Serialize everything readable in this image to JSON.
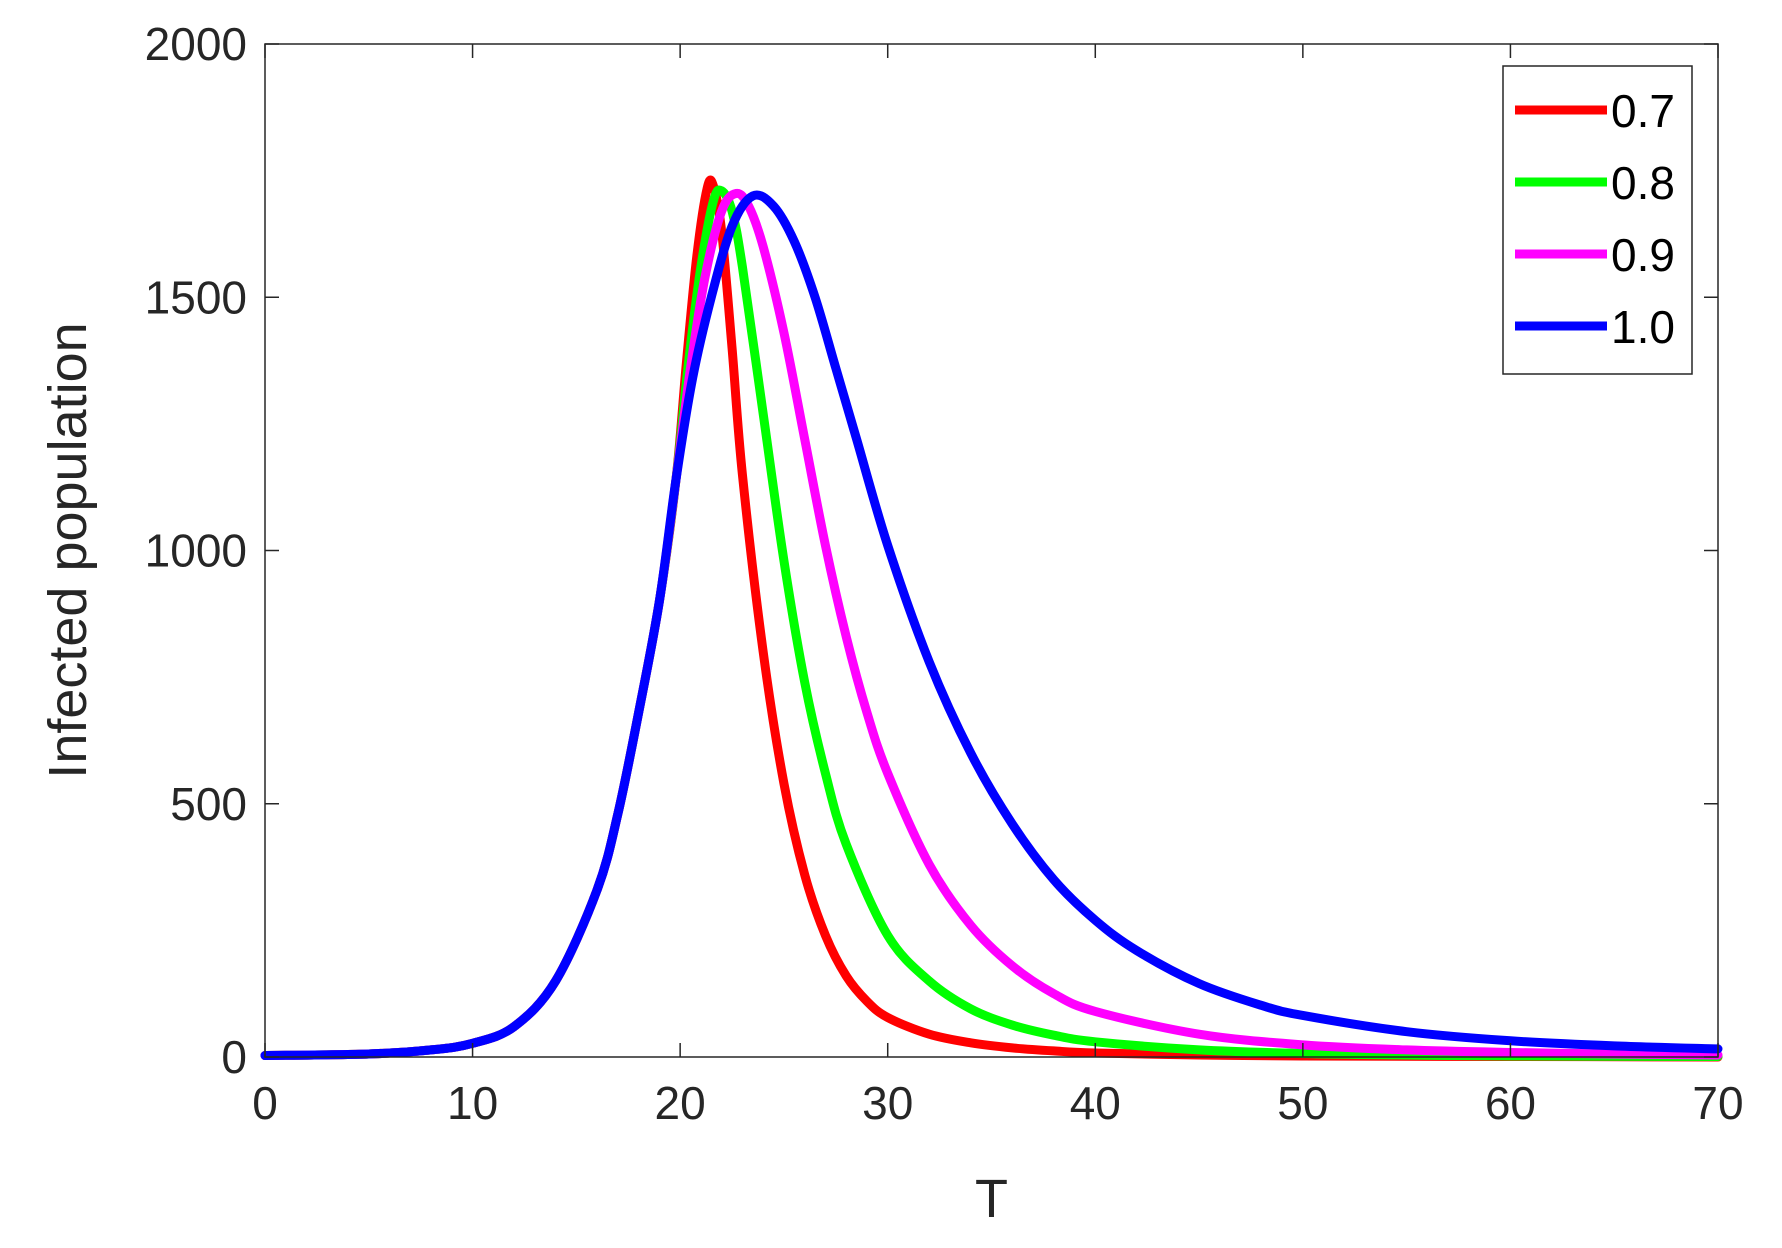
{
  "chart_data": {
    "type": "line",
    "title": "",
    "xlabel": "T",
    "ylabel": "Infected population",
    "xlim": [
      0,
      70
    ],
    "ylim": [
      0,
      2000
    ],
    "xticks": [
      0,
      10,
      20,
      30,
      40,
      50,
      60,
      70
    ],
    "yticks": [
      0,
      500,
      1000,
      1500,
      2000
    ],
    "xtick_labels": [
      "0",
      "10",
      "20",
      "30",
      "40",
      "50",
      "60",
      "70"
    ],
    "ytick_labels": [
      "0",
      "500",
      "1000",
      "1500",
      "2000"
    ],
    "grid": false,
    "legend_position": "top-right",
    "series": [
      {
        "name": "0.7",
        "color": "#ff0000",
        "points": [
          [
            0,
            3
          ],
          [
            5,
            6
          ],
          [
            8,
            14
          ],
          [
            10,
            27
          ],
          [
            12,
            60
          ],
          [
            14,
            150
          ],
          [
            16,
            330
          ],
          [
            17,
            480
          ],
          [
            18,
            680
          ],
          [
            19,
            900
          ],
          [
            19.8,
            1140
          ],
          [
            20.3,
            1370
          ],
          [
            20.8,
            1580
          ],
          [
            21.3,
            1715
          ],
          [
            21.6,
            1720
          ],
          [
            22,
            1630
          ],
          [
            22.5,
            1400
          ],
          [
            23,
            1150
          ],
          [
            24,
            800
          ],
          [
            25,
            540
          ],
          [
            26,
            360
          ],
          [
            27,
            240
          ],
          [
            28,
            160
          ],
          [
            29,
            110
          ],
          [
            30,
            78
          ],
          [
            32,
            45
          ],
          [
            34,
            28
          ],
          [
            36,
            18
          ],
          [
            38,
            12
          ],
          [
            40,
            8
          ],
          [
            45,
            4
          ],
          [
            50,
            2
          ],
          [
            60,
            1
          ],
          [
            70,
            0
          ]
        ]
      },
      {
        "name": "0.8",
        "color": "#00ff00",
        "points": [
          [
            0,
            3
          ],
          [
            5,
            6
          ],
          [
            8,
            14
          ],
          [
            10,
            27
          ],
          [
            12,
            60
          ],
          [
            14,
            150
          ],
          [
            16,
            330
          ],
          [
            17,
            480
          ],
          [
            18,
            680
          ],
          [
            19,
            900
          ],
          [
            19.8,
            1140
          ],
          [
            20.4,
            1370
          ],
          [
            21,
            1560
          ],
          [
            21.6,
            1690
          ],
          [
            22,
            1710
          ],
          [
            22.5,
            1670
          ],
          [
            23,
            1560
          ],
          [
            24,
            1270
          ],
          [
            25,
            980
          ],
          [
            26,
            740
          ],
          [
            27,
            560
          ],
          [
            28,
            420
          ],
          [
            30,
            240
          ],
          [
            32,
            150
          ],
          [
            34,
            95
          ],
          [
            36,
            63
          ],
          [
            38,
            43
          ],
          [
            40,
            30
          ],
          [
            45,
            14
          ],
          [
            50,
            7
          ],
          [
            55,
            4
          ],
          [
            60,
            2
          ],
          [
            70,
            1
          ]
        ]
      },
      {
        "name": "0.9",
        "color": "#ff00ff",
        "points": [
          [
            0,
            3
          ],
          [
            5,
            6
          ],
          [
            8,
            14
          ],
          [
            10,
            27
          ],
          [
            12,
            60
          ],
          [
            14,
            150
          ],
          [
            16,
            330
          ],
          [
            17,
            480
          ],
          [
            18,
            680
          ],
          [
            19,
            900
          ],
          [
            19.8,
            1140
          ],
          [
            20.5,
            1360
          ],
          [
            21.2,
            1540
          ],
          [
            22,
            1670
          ],
          [
            22.7,
            1705
          ],
          [
            23.3,
            1680
          ],
          [
            24,
            1600
          ],
          [
            25,
            1430
          ],
          [
            26,
            1220
          ],
          [
            27,
            1010
          ],
          [
            28,
            830
          ],
          [
            29,
            680
          ],
          [
            30,
            560
          ],
          [
            32,
            380
          ],
          [
            34,
            260
          ],
          [
            36,
            180
          ],
          [
            38,
            125
          ],
          [
            40,
            90
          ],
          [
            45,
            45
          ],
          [
            50,
            24
          ],
          [
            55,
            14
          ],
          [
            60,
            9
          ],
          [
            65,
            6
          ],
          [
            70,
            4
          ]
        ]
      },
      {
        "name": "1.0",
        "color": "#0000ff",
        "points": [
          [
            0,
            3
          ],
          [
            5,
            6
          ],
          [
            8,
            14
          ],
          [
            10,
            27
          ],
          [
            12,
            60
          ],
          [
            14,
            150
          ],
          [
            16,
            330
          ],
          [
            17,
            480
          ],
          [
            18,
            680
          ],
          [
            19,
            900
          ],
          [
            19.8,
            1140
          ],
          [
            20.6,
            1340
          ],
          [
            21.5,
            1500
          ],
          [
            22.5,
            1640
          ],
          [
            23.5,
            1700
          ],
          [
            24.5,
            1680
          ],
          [
            25.5,
            1610
          ],
          [
            26.5,
            1500
          ],
          [
            27.5,
            1360
          ],
          [
            28.5,
            1220
          ],
          [
            30,
            1010
          ],
          [
            32,
            780
          ],
          [
            34,
            600
          ],
          [
            36,
            460
          ],
          [
            38,
            350
          ],
          [
            40,
            270
          ],
          [
            42,
            210
          ],
          [
            45,
            145
          ],
          [
            48,
            102
          ],
          [
            50,
            82
          ],
          [
            55,
            50
          ],
          [
            60,
            32
          ],
          [
            65,
            22
          ],
          [
            70,
            16
          ]
        ]
      }
    ]
  }
}
